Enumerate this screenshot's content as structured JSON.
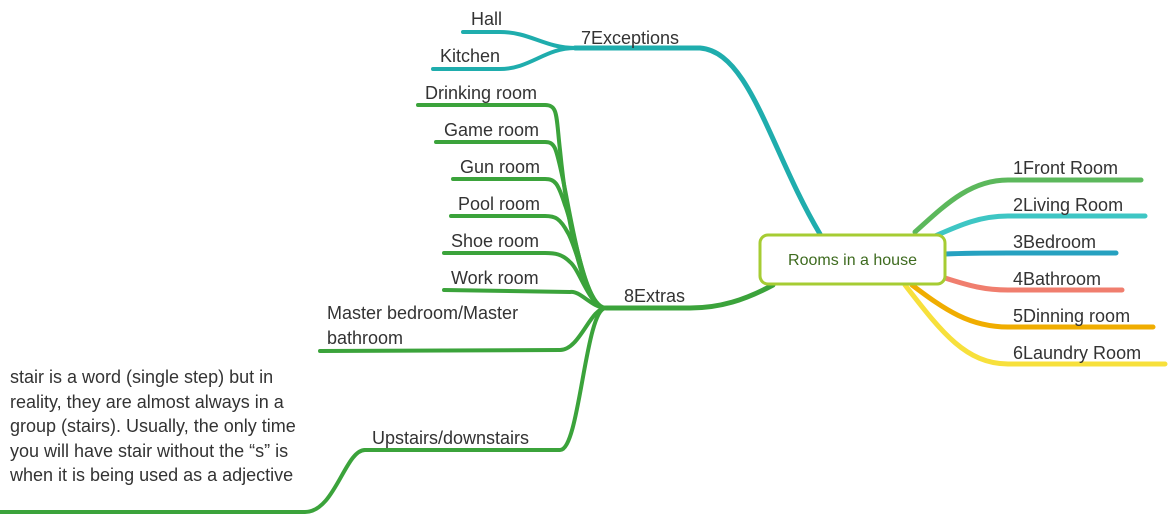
{
  "root": {
    "label": "Rooms in a house",
    "color": "#a6cc33"
  },
  "right_branches": [
    {
      "label": "1Front Room",
      "color": "#5cb85c"
    },
    {
      "label": "2Living Room",
      "color": "#3ec6c4"
    },
    {
      "label": "3Bedroom",
      "color": "#26a1c0"
    },
    {
      "label": "4Bathroom",
      "color": "#f07e6e"
    },
    {
      "label": "5Dinning room",
      "color": "#f0ad00"
    },
    {
      "label": "6Laundry Room",
      "color": "#f7e03c"
    }
  ],
  "exceptions": {
    "label": "7Exceptions",
    "color": "#1fadad",
    "children": [
      "Hall",
      "Kitchen"
    ]
  },
  "extras": {
    "label": "8Extras",
    "color": "#3ba33b",
    "children": [
      "Drinking room",
      "Game room",
      "Gun room",
      "Pool room",
      "Shoe room",
      "Work room"
    ],
    "master": "Master bedroom/Master bathroom",
    "upstairs": "Upstairs/downstairs",
    "note": "stair is a word (single step) but in reality, they are almost always in a group (stairs). Usually, the only time you will have stair without the “s” is when it is being used as a adjective"
  }
}
